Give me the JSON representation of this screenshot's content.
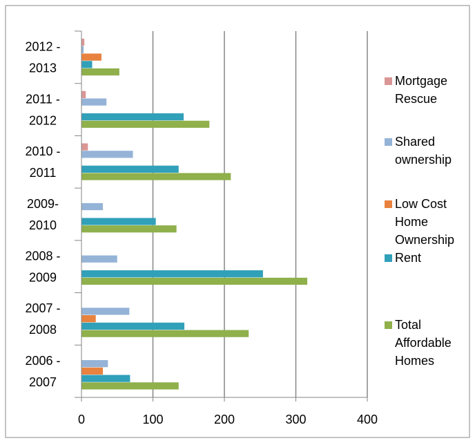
{
  "chart_data": {
    "type": "bar",
    "orientation": "horizontal",
    "categories": [
      [
        "2006 -",
        "2007"
      ],
      [
        "2007 -",
        "2008"
      ],
      [
        "2008 -",
        "2009"
      ],
      [
        "2009-",
        "2010"
      ],
      [
        "2010 -",
        "2011"
      ],
      [
        "2011 -",
        "2012"
      ],
      [
        "2012 -",
        "2013"
      ]
    ],
    "series": [
      {
        "name": "Mortgage Rescue",
        "color": "#d99694",
        "values": [
          0,
          0,
          0,
          0,
          9,
          6,
          4
        ]
      },
      {
        "name": "Shared ownership",
        "color": "#95b3d7",
        "values": [
          37,
          67,
          50,
          30,
          72,
          35,
          3
        ]
      },
      {
        "name": "Low Cost Home Ownership",
        "color": "#e8823e",
        "values": [
          30,
          20,
          0,
          0,
          0,
          0,
          28
        ]
      },
      {
        "name": "Rent",
        "color": "#31a0b9",
        "values": [
          68,
          144,
          254,
          104,
          136,
          143,
          15
        ]
      },
      {
        "name": "Total Affordable Homes",
        "color": "#8fb04b",
        "values": [
          136,
          234,
          316,
          133,
          209,
          179,
          53
        ]
      }
    ],
    "xlim": [
      0,
      400
    ],
    "xticks": [
      0,
      100,
      200,
      300,
      400
    ],
    "grid": true,
    "legend": "right"
  }
}
